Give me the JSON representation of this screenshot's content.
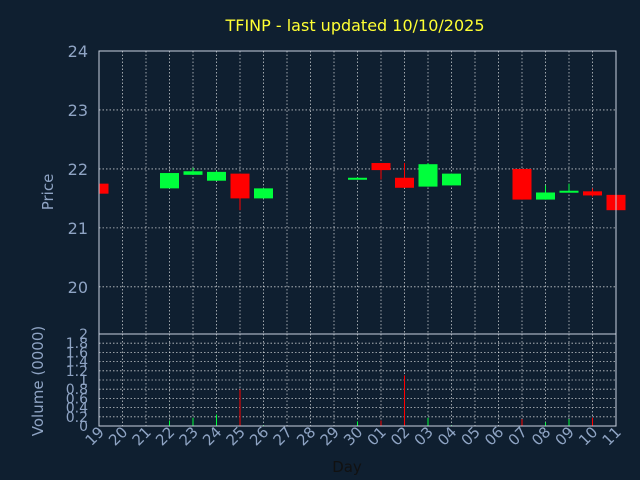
{
  "chart_data": {
    "type": "candlestick",
    "title": "TFINP - last updated 10/10/2025",
    "xlabel": "Day",
    "price_ylabel": "Price",
    "volume_ylabel": "Volume (0000)",
    "x_ticks": [
      "19",
      "20",
      "21",
      "22",
      "23",
      "24",
      "25",
      "26",
      "27",
      "28",
      "29",
      "30",
      "01",
      "02",
      "03",
      "04",
      "05",
      "06",
      "07",
      "08",
      "09",
      "10",
      "11"
    ],
    "price_ylim": [
      19.2,
      24
    ],
    "price_yticks": [
      20,
      21,
      22,
      23,
      24
    ],
    "volume_ylim": [
      0,
      2
    ],
    "volume_yticks": [
      "0",
      "0.2",
      "0.4",
      "0.6",
      "0.8",
      "1",
      "1.2",
      "1.4",
      "1.6",
      "1.8",
      "2"
    ],
    "grid": true,
    "colors": {
      "background": "#0f1f30",
      "title": "#ffff33",
      "axis_label": "#8fa4c4",
      "up": "#00ff3c",
      "down": "#ff0000",
      "grid": "#ffffff"
    },
    "candles": [
      {
        "x": 0,
        "open": 21.75,
        "high": 21.75,
        "low": 21.58,
        "close": 21.58,
        "volume": 0.0
      },
      {
        "x": 3,
        "open": 21.67,
        "high": 21.93,
        "low": 21.67,
        "close": 21.93,
        "volume": 0.12
      },
      {
        "x": 4,
        "open": 21.9,
        "high": 22.02,
        "low": 21.9,
        "close": 21.96,
        "volume": 0.18
      },
      {
        "x": 5,
        "open": 21.8,
        "high": 21.97,
        "low": 21.8,
        "close": 21.95,
        "volume": 0.25
      },
      {
        "x": 6,
        "open": 21.92,
        "high": 21.92,
        "low": 21.3,
        "close": 21.5,
        "volume": 0.8
      },
      {
        "x": 7,
        "open": 21.5,
        "high": 21.67,
        "low": 21.5,
        "close": 21.67,
        "volume": 0.02
      },
      {
        "x": 11,
        "open": 21.82,
        "high": 21.86,
        "low": 21.82,
        "close": 21.85,
        "volume": 0.1
      },
      {
        "x": 12,
        "open": 22.1,
        "high": 22.1,
        "low": 21.82,
        "close": 21.98,
        "volume": 0.12
      },
      {
        "x": 13,
        "open": 21.85,
        "high": 22.1,
        "low": 21.68,
        "close": 21.68,
        "volume": 1.1
      },
      {
        "x": 14,
        "open": 21.7,
        "high": 22.1,
        "low": 21.7,
        "close": 22.08,
        "volume": 0.18
      },
      {
        "x": 15,
        "open": 21.72,
        "high": 21.92,
        "low": 21.72,
        "close": 21.92,
        "volume": 0.02
      },
      {
        "x": 18,
        "open": 22.0,
        "high": 22.0,
        "low": 21.48,
        "close": 21.48,
        "volume": 0.15
      },
      {
        "x": 19,
        "open": 21.48,
        "high": 21.72,
        "low": 21.48,
        "close": 21.6,
        "volume": 0.08
      },
      {
        "x": 20,
        "open": 21.61,
        "high": 21.75,
        "low": 21.61,
        "close": 21.63,
        "volume": 0.15
      },
      {
        "x": 21,
        "open": 21.62,
        "high": 21.67,
        "low": 21.53,
        "close": 21.55,
        "volume": 0.18
      },
      {
        "x": 22,
        "open": 21.56,
        "high": 21.63,
        "low": 21.03,
        "close": 21.3,
        "volume": 1.85
      }
    ]
  }
}
